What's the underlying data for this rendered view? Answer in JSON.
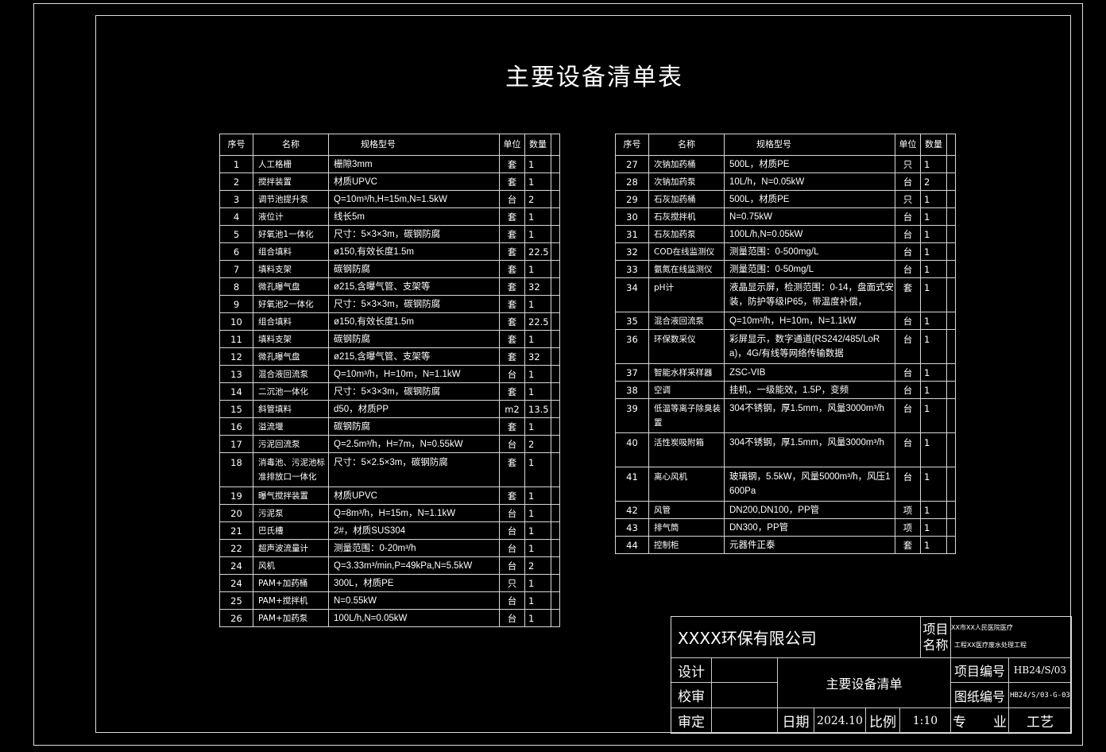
{
  "title": "主要设备清单表",
  "headers": {
    "no": "序号",
    "name": "名称",
    "spec": "规格型号",
    "unit": "单位",
    "qty": "数量"
  },
  "left_rows": [
    {
      "no": "1",
      "name": "人工格栅",
      "spec": "栅隙3mm",
      "unit": "套",
      "qty": "1"
    },
    {
      "no": "2",
      "name": "搅拌装置",
      "spec": "材质UPVC",
      "unit": "套",
      "qty": "1"
    },
    {
      "no": "3",
      "name": "调节池提升泵",
      "spec": "Q=10m³/h,H=15m,N=1.5kW",
      "unit": "台",
      "qty": "2"
    },
    {
      "no": "4",
      "name": "液位计",
      "spec": "线长5m",
      "unit": "套",
      "qty": "1"
    },
    {
      "no": "5",
      "name": "好氧池1一体化",
      "spec": "尺寸：5×3×3m，碳钢防腐",
      "unit": "套",
      "qty": "1"
    },
    {
      "no": "6",
      "name": "组合填料",
      "spec": "ø150,有效长度1.5m",
      "unit": "套",
      "qty": "22.5"
    },
    {
      "no": "7",
      "name": "填料支架",
      "spec": "碳钢防腐",
      "unit": "套",
      "qty": "1"
    },
    {
      "no": "8",
      "name": "微孔曝气盘",
      "spec": "ø215,含曝气管、支架等",
      "unit": "套",
      "qty": "32"
    },
    {
      "no": "9",
      "name": "好氧池2一体化",
      "spec": "尺寸：5×3×3m，碳钢防腐",
      "unit": "套",
      "qty": "1"
    },
    {
      "no": "10",
      "name": "组合填料",
      "spec": "ø150,有效长度1.5m",
      "unit": "套",
      "qty": "22.5"
    },
    {
      "no": "11",
      "name": "填料支架",
      "spec": "碳钢防腐",
      "unit": "套",
      "qty": "1"
    },
    {
      "no": "12",
      "name": "微孔曝气盘",
      "spec": "ø215,含曝气管、支架等",
      "unit": "套",
      "qty": "32"
    },
    {
      "no": "13",
      "name": "混合液回流泵",
      "spec": "Q=10m³/h，H=10m，N=1.1kW",
      "unit": "台",
      "qty": "1"
    },
    {
      "no": "14",
      "name": "二沉池一体化",
      "spec": "尺寸：5×3×3m，碳钢防腐",
      "unit": "套",
      "qty": "1"
    },
    {
      "no": "15",
      "name": "斜管填料",
      "spec": "d50，材质PP",
      "unit": "m2",
      "qty": "13.5"
    },
    {
      "no": "16",
      "name": "溢流堰",
      "spec": "碳钢防腐",
      "unit": "套",
      "qty": "1"
    },
    {
      "no": "17",
      "name": "污泥回流泵",
      "spec": "Q=2.5m³/h，H=7m，N=0.55kW",
      "unit": "台",
      "qty": "2"
    },
    {
      "no": "18",
      "name": "消毒池、污泥池标准排放口一体化",
      "spec": "尺寸：5×2.5×3m，碳钢防腐",
      "unit": "套",
      "qty": "1",
      "tall": true
    },
    {
      "no": "19",
      "name": "曝气搅拌装置",
      "spec": "材质UPVC",
      "unit": "套",
      "qty": "1"
    },
    {
      "no": "20",
      "name": "污泥泵",
      "spec": "Q=8m³/h，H=15m，N=1.1kW",
      "unit": "台",
      "qty": "1"
    },
    {
      "no": "21",
      "name": "巴氏槽",
      "spec": "2#，材质SUS304",
      "unit": "台",
      "qty": "1"
    },
    {
      "no": "22",
      "name": "超声波流量计",
      "spec": "测量范围：0-20m³/h",
      "unit": "台",
      "qty": "1"
    },
    {
      "no": "24",
      "name": "风机",
      "spec": "Q=3.33m³/min,P=49kPa,N=5.5kW",
      "unit": "台",
      "qty": "2"
    },
    {
      "no": "24",
      "name": "PAM+加药桶",
      "spec": "300L，材质PE",
      "unit": "只",
      "qty": "1"
    },
    {
      "no": "25",
      "name": "PAM+搅拌机",
      "spec": "N=0.55kW",
      "unit": "台",
      "qty": "1"
    },
    {
      "no": "26",
      "name": "PAM+加药泵",
      "spec": "100L/h,N=0.05kW",
      "unit": "台",
      "qty": "1"
    }
  ],
  "right_rows": [
    {
      "no": "27",
      "name": "次钠加药桶",
      "spec": "500L，材质PE",
      "unit": "只",
      "qty": "1"
    },
    {
      "no": "28",
      "name": "次钠加药泵",
      "spec": "10L/h，N=0.05kW",
      "unit": "台",
      "qty": "2"
    },
    {
      "no": "29",
      "name": "石灰加药桶",
      "spec": "500L，材质PE",
      "unit": "只",
      "qty": "1"
    },
    {
      "no": "30",
      "name": "石灰搅拌机",
      "spec": "N=0.75kW",
      "unit": "台",
      "qty": "1"
    },
    {
      "no": "31",
      "name": "石灰加药泵",
      "spec": "100L/h,N=0.05kW",
      "unit": "台",
      "qty": "1"
    },
    {
      "no": "32",
      "name": "COD在线监测仪",
      "spec": "测量范围：0-500mg/L",
      "unit": "台",
      "qty": "1"
    },
    {
      "no": "33",
      "name": "氨氮在线监测仪",
      "spec": "测量范围：0-50mg/L",
      "unit": "台",
      "qty": "1"
    },
    {
      "no": "34",
      "name": "pH计",
      "spec": "液晶显示屏，检测范围：0-14，盘面式安装，防护等级IP65，带温度补偿，",
      "unit": "套",
      "qty": "1",
      "tall": true
    },
    {
      "no": "35",
      "name": "混合液回流泵",
      "spec": "Q=10m³/h，H=10m，N=1.1kW",
      "unit": "台",
      "qty": "1"
    },
    {
      "no": "36",
      "name": "环保数采仪",
      "spec": "彩屏显示，数字通道(RS242/485/LoRa)，4G/有线等网络传输数据",
      "unit": "台",
      "qty": "1",
      "tall": true
    },
    {
      "no": "37",
      "name": "智能水样采样器",
      "spec": "ZSC-VIB",
      "unit": "台",
      "qty": "1"
    },
    {
      "no": "38",
      "name": "空调",
      "spec": "挂机，一级能效，1.5P，变频",
      "unit": "台",
      "qty": "1"
    },
    {
      "no": "39",
      "name": "低温等离子除臭装置",
      "spec": "304不锈钢，厚1.5mm，风量3000m³/h",
      "unit": "台",
      "qty": "1",
      "tall": true
    },
    {
      "no": "40",
      "name": "活性炭吸附箱",
      "spec": "304不锈钢，厚1.5mm，风量3000m³/h",
      "unit": "台",
      "qty": "1",
      "tall": true
    },
    {
      "no": "41",
      "name": "离心风机",
      "spec": "玻璃钢，5.5kW，风量5000m³/h，风压1600Pa",
      "unit": "台",
      "qty": "1",
      "tall": true
    },
    {
      "no": "42",
      "name": "风管",
      "spec": "DN200,DN100，PP管",
      "unit": "项",
      "qty": "1"
    },
    {
      "no": "43",
      "name": "排气筒",
      "spec": "DN300，PP管",
      "unit": "项",
      "qty": "1"
    },
    {
      "no": "44",
      "name": "控制柜",
      "spec": "元器件正泰",
      "unit": "套",
      "qty": "1"
    }
  ],
  "title_block": {
    "company": "XXXX环保有限公司",
    "project_name_label": "项目名称",
    "project_name_1": "XX市XX人民医院医疗",
    "project_name_2": "工程XX医疗废水处理工程",
    "design_label": "设计",
    "review_label": "校审",
    "approve_label": "审定",
    "drawing_title": "主要设备清单",
    "project_no_label": "项目编号",
    "project_no": "HB24/S/03",
    "drawing_no_label": "图纸编号",
    "drawing_no": "HB24/S/03-G-03",
    "date_label": "日期",
    "date": "2024.10",
    "scale_label": "比例",
    "scale": "1:10",
    "discipline_label": "专　　业",
    "discipline": "工艺"
  }
}
